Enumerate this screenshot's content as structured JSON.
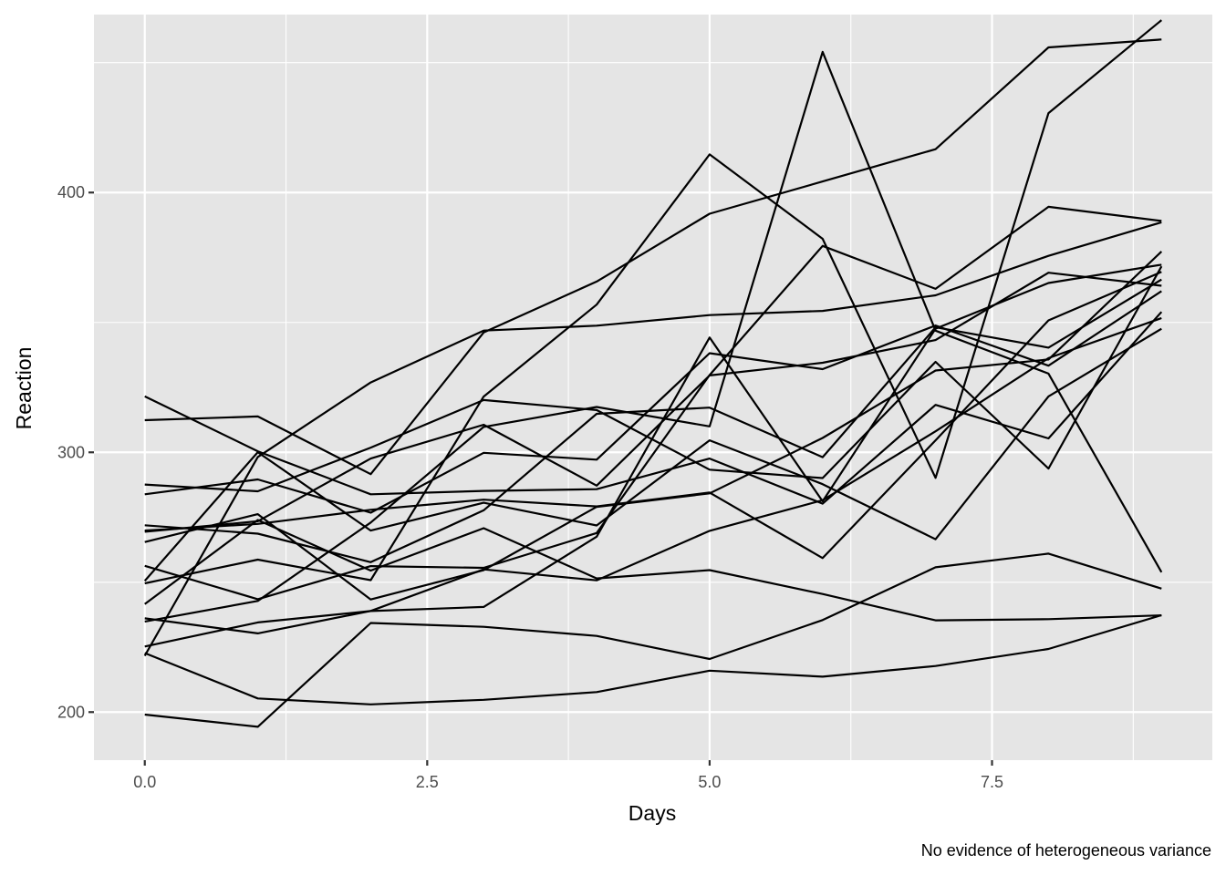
{
  "chart_data": {
    "type": "line",
    "title": "",
    "xlabel": "Days",
    "ylabel": "Reaction",
    "caption": "No evidence of heterogeneous variance",
    "xlim": [
      -0.45,
      9.45
    ],
    "ylim": [
      181.5,
      468.5
    ],
    "x_ticks": [
      0,
      2.5,
      5,
      7.5
    ],
    "x_tick_labels": [
      "0.0",
      "2.5",
      "5.0",
      "7.5"
    ],
    "y_ticks": [
      200,
      300,
      400
    ],
    "y_tick_labels": [
      "200",
      "300",
      "400"
    ],
    "grid": true,
    "legend": "none",
    "colors": {
      "panel": "#e5e5e5",
      "grid": "#ffffff",
      "line": "#000000"
    },
    "x": [
      0,
      1,
      2,
      3,
      4,
      5,
      6,
      7,
      8,
      9
    ],
    "series": [
      {
        "values": [
          249.56,
          258.7,
          250.8,
          321.44,
          356.85,
          414.69,
          382.2,
          290.15,
          430.59,
          466.35
        ]
      },
      {
        "values": [
          222.73,
          205.27,
          202.98,
          204.71,
          207.72,
          215.96,
          213.63,
          217.73,
          224.3,
          237.31
        ]
      },
      {
        "values": [
          199.05,
          194.33,
          234.32,
          232.84,
          229.31,
          220.46,
          235.42,
          255.75,
          261.01,
          247.52
        ]
      },
      {
        "values": [
          321.54,
          300.4,
          283.86,
          285.13,
          285.8,
          297.59,
          280.24,
          318.26,
          305.35,
          354.05
        ]
      },
      {
        "values": [
          287.61,
          285.0,
          301.82,
          320.12,
          316.28,
          293.32,
          290.08,
          334.82,
          293.75,
          371.58
        ]
      },
      {
        "values": [
          234.86,
          242.81,
          272.96,
          309.77,
          317.46,
          309.99,
          454.16,
          346.83,
          330.3,
          253.86
        ]
      },
      {
        "values": [
          283.84,
          289.55,
          276.77,
          299.8,
          297.17,
          338.17,
          332.02,
          348.84,
          333.36,
          362.04
        ]
      },
      {
        "values": [
          265.47,
          276.2,
          243.36,
          254.67,
          279.02,
          284.19,
          305.53,
          331.5,
          335.75,
          377.3
        ]
      },
      {
        "values": [
          241.61,
          273.95,
          254.49,
          270.8,
          251.45,
          254.64,
          245.45,
          235.31,
          235.76,
          237.25
        ]
      },
      {
        "values": [
          312.36,
          313.8,
          291.61,
          346.12,
          365.73,
          391.84,
          404.26,
          416.69,
          455.86,
          458.92
        ]
      },
      {
        "values": [
          236.1,
          230.32,
          238.92,
          254.92,
          250.71,
          269.77,
          281.56,
          308.1,
          336.28,
          351.65
        ]
      },
      {
        "values": [
          256.29,
          243.46,
          256.2,
          255.53,
          268.92,
          329.72,
          379.44,
          362.91,
          394.49,
          389.05
        ]
      },
      {
        "values": [
          250.53,
          300.06,
          269.89,
          280.58,
          271.83,
          304.63,
          287.75,
          266.56,
          321.54,
          347.56
        ]
      },
      {
        "values": [
          221.68,
          298.19,
          326.88,
          346.86,
          348.74,
          352.83,
          354.43,
          360.43,
          375.63,
          388.54
        ]
      },
      {
        "values": [
          271.92,
          268.7,
          257.7,
          277.66,
          314.82,
          317.21,
          298.14,
          348.12,
          340.28,
          366.51
        ]
      },
      {
        "values": [
          225.26,
          234.52,
          238.9,
          240.47,
          267.54,
          344.19,
          281.15,
          347.59,
          365.16,
          372.23
        ]
      },
      {
        "values": [
          269.88,
          272.44,
          277.89,
          281.79,
          279.17,
          284.51,
          259.27,
          304.63,
          350.78,
          369.47
        ]
      },
      {
        "values": [
          269.41,
          273.47,
          297.6,
          310.63,
          287.17,
          329.61,
          334.48,
          343.22,
          369.14,
          364.12
        ]
      }
    ]
  }
}
